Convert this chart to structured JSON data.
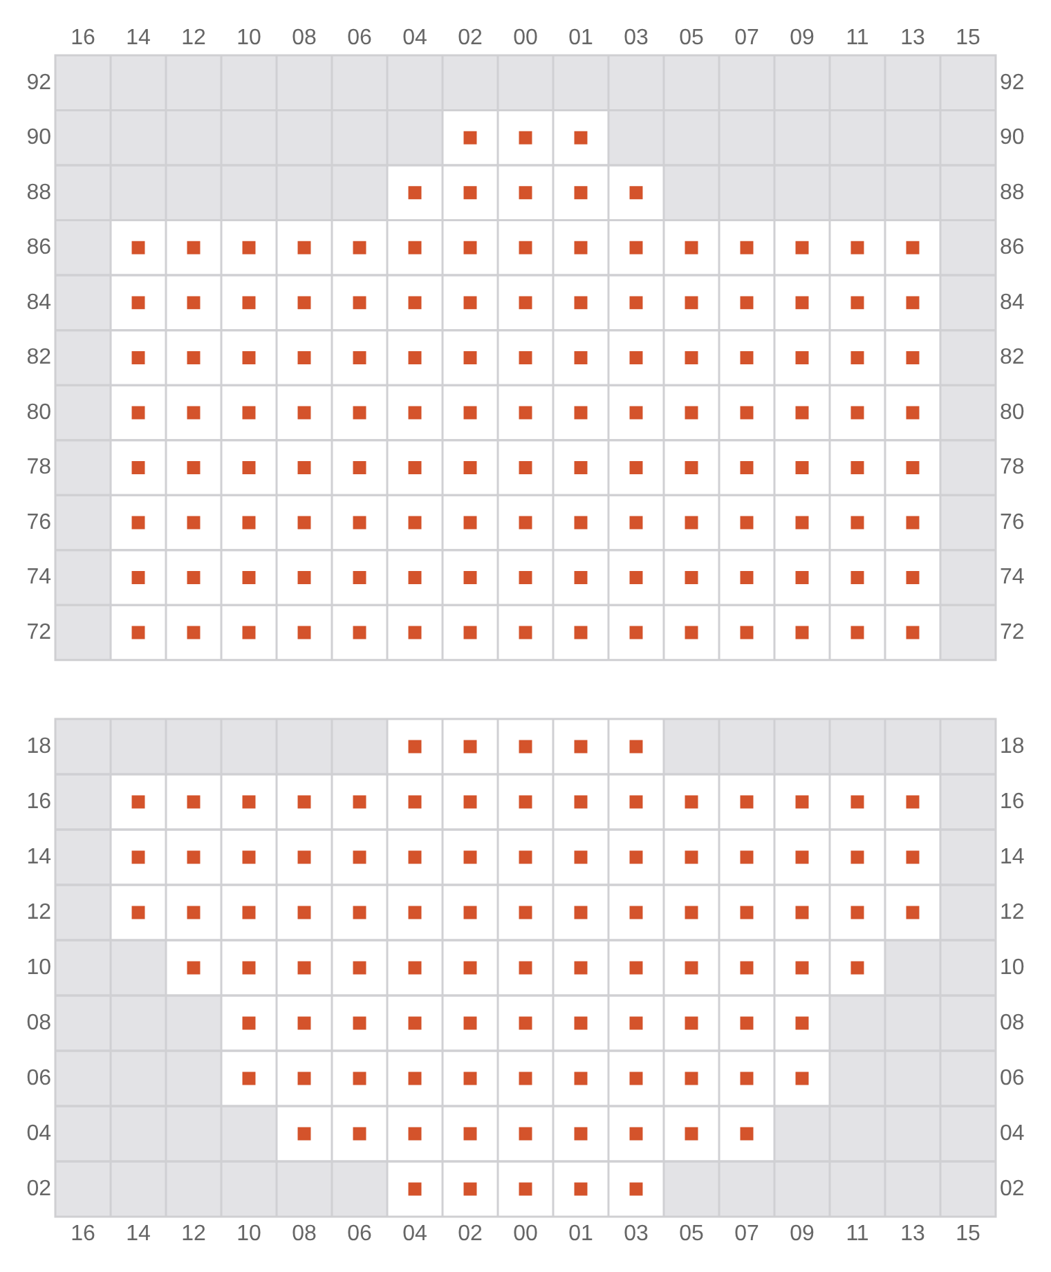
{
  "chart_data": [
    {
      "type": "scatter",
      "categories": [
        "16",
        "14",
        "12",
        "10",
        "08",
        "06",
        "04",
        "02",
        "00",
        "01",
        "03",
        "05",
        "07",
        "09",
        "11",
        "13",
        "15"
      ],
      "ylim": [
        71,
        93
      ],
      "yticks": [
        72,
        74,
        76,
        78,
        80,
        82,
        84,
        86,
        88,
        90,
        92
      ],
      "y2lim": [
        71,
        93
      ],
      "y2ticks": [
        72,
        74,
        76,
        78,
        80,
        82,
        84,
        86,
        88,
        90,
        92
      ],
      "grid": true,
      "marker": "square",
      "legend": false,
      "series": [
        {
          "color": "#d4532b",
          "x": [
            "14",
            "14",
            "14",
            "14",
            "14",
            "14",
            "14",
            "14",
            "12",
            "12",
            "12",
            "12",
            "12",
            "12",
            "12",
            "12",
            "10",
            "10",
            "10",
            "10",
            "10",
            "10",
            "10",
            "10",
            "08",
            "08",
            "08",
            "08",
            "08",
            "08",
            "08",
            "08",
            "06",
            "06",
            "06",
            "06",
            "06",
            "06",
            "06",
            "06",
            "04",
            "04",
            "04",
            "04",
            "04",
            "04",
            "04",
            "04",
            "04",
            "02",
            "02",
            "02",
            "02",
            "02",
            "02",
            "02",
            "02",
            "02",
            "02",
            "00",
            "00",
            "00",
            "00",
            "00",
            "00",
            "00",
            "00",
            "00",
            "00",
            "01",
            "01",
            "01",
            "01",
            "01",
            "01",
            "01",
            "01",
            "01",
            "01",
            "03",
            "03",
            "03",
            "03",
            "03",
            "03",
            "03",
            "03",
            "03",
            "05",
            "05",
            "05",
            "05",
            "05",
            "05",
            "05",
            "05",
            "07",
            "07",
            "07",
            "07",
            "07",
            "07",
            "07",
            "07",
            "09",
            "09",
            "09",
            "09",
            "09",
            "09",
            "09",
            "09",
            "11",
            "11",
            "11",
            "11",
            "11",
            "11",
            "11",
            "11",
            "13",
            "13",
            "13",
            "13",
            "13",
            "13",
            "13",
            "13"
          ],
          "values": [
            72,
            74,
            76,
            78,
            80,
            82,
            84,
            86,
            72,
            74,
            76,
            78,
            80,
            82,
            84,
            86,
            72,
            74,
            76,
            78,
            80,
            82,
            84,
            86,
            72,
            74,
            76,
            78,
            80,
            82,
            84,
            86,
            72,
            74,
            76,
            78,
            80,
            82,
            84,
            86,
            72,
            74,
            76,
            78,
            80,
            82,
            84,
            86,
            88,
            72,
            74,
            76,
            78,
            80,
            82,
            84,
            86,
            88,
            90,
            72,
            74,
            76,
            78,
            80,
            82,
            84,
            86,
            88,
            90,
            72,
            74,
            76,
            78,
            80,
            82,
            84,
            86,
            88,
            90,
            72,
            74,
            76,
            78,
            80,
            82,
            84,
            86,
            88,
            72,
            74,
            76,
            78,
            80,
            82,
            84,
            86,
            72,
            74,
            76,
            78,
            80,
            82,
            84,
            86,
            72,
            74,
            76,
            78,
            80,
            82,
            84,
            86,
            72,
            74,
            76,
            78,
            80,
            82,
            84,
            86,
            72,
            74,
            76,
            78,
            80,
            82,
            84,
            86
          ]
        }
      ]
    },
    {
      "type": "scatter",
      "categories": [
        "16",
        "14",
        "12",
        "10",
        "08",
        "06",
        "04",
        "02",
        "00",
        "01",
        "03",
        "05",
        "07",
        "09",
        "11",
        "13",
        "15"
      ],
      "ylim": [
        1,
        19
      ],
      "yticks": [
        {
          "value": 2,
          "label": "02"
        },
        {
          "value": 4,
          "label": "04"
        },
        {
          "value": 6,
          "label": "06"
        },
        {
          "value": 8,
          "label": "08"
        },
        10,
        12,
        14,
        16,
        18
      ],
      "y2lim": [
        1,
        19
      ],
      "y2ticks": [
        {
          "value": 2,
          "label": "02"
        },
        {
          "value": 4,
          "label": "04"
        },
        {
          "value": 6,
          "label": "06"
        },
        {
          "value": 8,
          "label": "08"
        },
        10,
        12,
        14,
        16,
        18
      ],
      "grid": true,
      "marker": "square",
      "legend": false,
      "series": [
        {
          "color": "#d4532b",
          "x": [
            "14",
            "14",
            "14",
            "12",
            "12",
            "12",
            "12",
            "10",
            "10",
            "10",
            "10",
            "10",
            "10",
            "08",
            "08",
            "08",
            "08",
            "08",
            "08",
            "08",
            "06",
            "06",
            "06",
            "06",
            "06",
            "06",
            "06",
            "04",
            "04",
            "04",
            "04",
            "04",
            "04",
            "04",
            "04",
            "04",
            "02",
            "02",
            "02",
            "02",
            "02",
            "02",
            "02",
            "02",
            "02",
            "00",
            "00",
            "00",
            "00",
            "00",
            "00",
            "00",
            "00",
            "00",
            "01",
            "01",
            "01",
            "01",
            "01",
            "01",
            "01",
            "01",
            "01",
            "03",
            "03",
            "03",
            "03",
            "03",
            "03",
            "03",
            "03",
            "03",
            "05",
            "05",
            "05",
            "05",
            "05",
            "05",
            "05",
            "07",
            "07",
            "07",
            "07",
            "07",
            "07",
            "07",
            "09",
            "09",
            "09",
            "09",
            "09",
            "09",
            "11",
            "11",
            "11",
            "11",
            "13",
            "13",
            "13"
          ],
          "values": [
            12,
            14,
            16,
            10,
            12,
            14,
            16,
            6,
            8,
            10,
            12,
            14,
            16,
            4,
            6,
            8,
            10,
            12,
            14,
            16,
            4,
            6,
            8,
            10,
            12,
            14,
            16,
            2,
            4,
            6,
            8,
            10,
            12,
            14,
            16,
            18,
            2,
            4,
            6,
            8,
            10,
            12,
            14,
            16,
            18,
            2,
            4,
            6,
            8,
            10,
            12,
            14,
            16,
            18,
            2,
            4,
            6,
            8,
            10,
            12,
            14,
            16,
            18,
            2,
            4,
            6,
            8,
            10,
            12,
            14,
            16,
            18,
            4,
            6,
            8,
            10,
            12,
            14,
            16,
            4,
            6,
            8,
            10,
            12,
            14,
            16,
            6,
            8,
            10,
            12,
            14,
            16,
            10,
            12,
            14,
            16,
            12,
            14,
            16
          ]
        }
      ]
    }
  ]
}
